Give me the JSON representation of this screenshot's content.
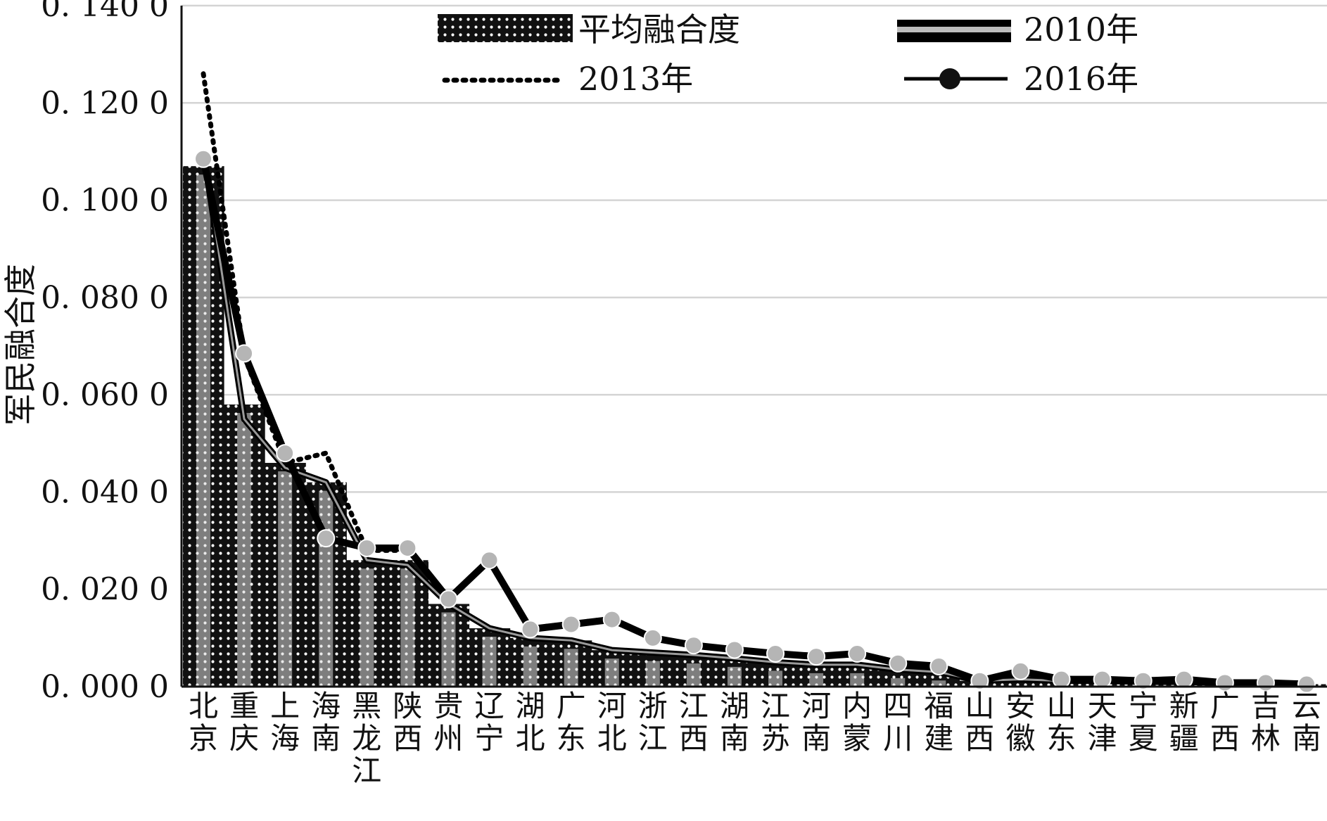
{
  "chart_data": {
    "type": "bar",
    "xlabel": "",
    "ylabel": "军民融合度",
    "ylim": [
      0,
      0.14
    ],
    "y_ticks": [
      {
        "value": 0,
        "label": "0. 000 0"
      },
      {
        "value": 0.02,
        "label": "0. 020 0"
      },
      {
        "value": 0.04,
        "label": "0. 040 0"
      },
      {
        "value": 0.06,
        "label": "0. 060 0"
      },
      {
        "value": 0.08,
        "label": "0. 080 0"
      },
      {
        "value": 0.1,
        "label": "0. 100 0"
      },
      {
        "value": 0.12,
        "label": "0. 120 0"
      },
      {
        "value": 0.14,
        "label": "0. 140 0"
      }
    ],
    "grid": true,
    "legend_position": "top",
    "categories": [
      "北京",
      "重庆",
      "上海",
      "海南",
      "黑龙江",
      "陕西",
      "贵州",
      "辽宁",
      "湖北",
      "广东",
      "河北",
      "浙江",
      "江西",
      "湖南",
      "江苏",
      "河南",
      "内蒙",
      "四川",
      "福建",
      "山西",
      "安徽",
      "山东",
      "天津",
      "宁夏",
      "新疆",
      "广西",
      "吉林",
      "云南"
    ],
    "series": [
      {
        "name": "平均融合度",
        "kind": "bar",
        "values": [
          0.107,
          0.058,
          0.046,
          0.042,
          0.026,
          0.026,
          0.017,
          0.012,
          0.01,
          0.0095,
          0.0075,
          0.007,
          0.0065,
          0.0058,
          0.005,
          0.0045,
          0.0045,
          0.0035,
          0.003,
          0.0012,
          0.0015,
          0.0012,
          0.0012,
          0.001,
          0.001,
          0.0008,
          0.0008,
          0.0005
        ]
      },
      {
        "name": "2010年",
        "kind": "line",
        "values": [
          0.11,
          0.055,
          0.045,
          0.042,
          0.026,
          0.025,
          0.017,
          0.012,
          0.01,
          0.0095,
          0.0075,
          0.007,
          0.0065,
          0.0058,
          0.005,
          0.0045,
          0.0045,
          0.0035,
          0.003,
          0.0012,
          0.0015,
          0.0012,
          0.0012,
          0.001,
          0.001,
          0.0008,
          0.0008,
          0.0005
        ]
      },
      {
        "name": "2013年",
        "kind": "line",
        "values": [
          0.126,
          0.068,
          0.046,
          0.048,
          0.028,
          0.028,
          0.018,
          0.026,
          0.012,
          0.013,
          0.014,
          0.01,
          0.0085,
          0.0075,
          0.0068,
          0.0062,
          0.0068,
          0.005,
          0.0042,
          0.0012,
          0.0032,
          0.0015,
          0.0015,
          0.0012,
          0.0015,
          0.001,
          0.001,
          0.0005
        ]
      },
      {
        "name": "2016年",
        "kind": "line",
        "values": [
          0.1085,
          0.0685,
          0.048,
          0.0305,
          0.0285,
          0.0285,
          0.018,
          0.026,
          0.0118,
          0.0128,
          0.0138,
          0.01,
          0.0085,
          0.0076,
          0.0068,
          0.0062,
          0.0068,
          0.0048,
          0.0042,
          0.0012,
          0.0032,
          0.0015,
          0.0015,
          0.0012,
          0.0015,
          0.0008,
          0.0008,
          0.0005
        ]
      }
    ],
    "colors": {
      "bar_fill": "#111111",
      "bar_dots": "#ffffff",
      "bar_stripe": "#d9d9d9",
      "line_2010": "#000000",
      "line_2010_inner": "#9a9a9a",
      "line_2013": "#000000",
      "line_2016": "#000000",
      "marker_2016": "#b5b5b5",
      "grid": "#d4d4d4",
      "axis": "#111111"
    }
  }
}
